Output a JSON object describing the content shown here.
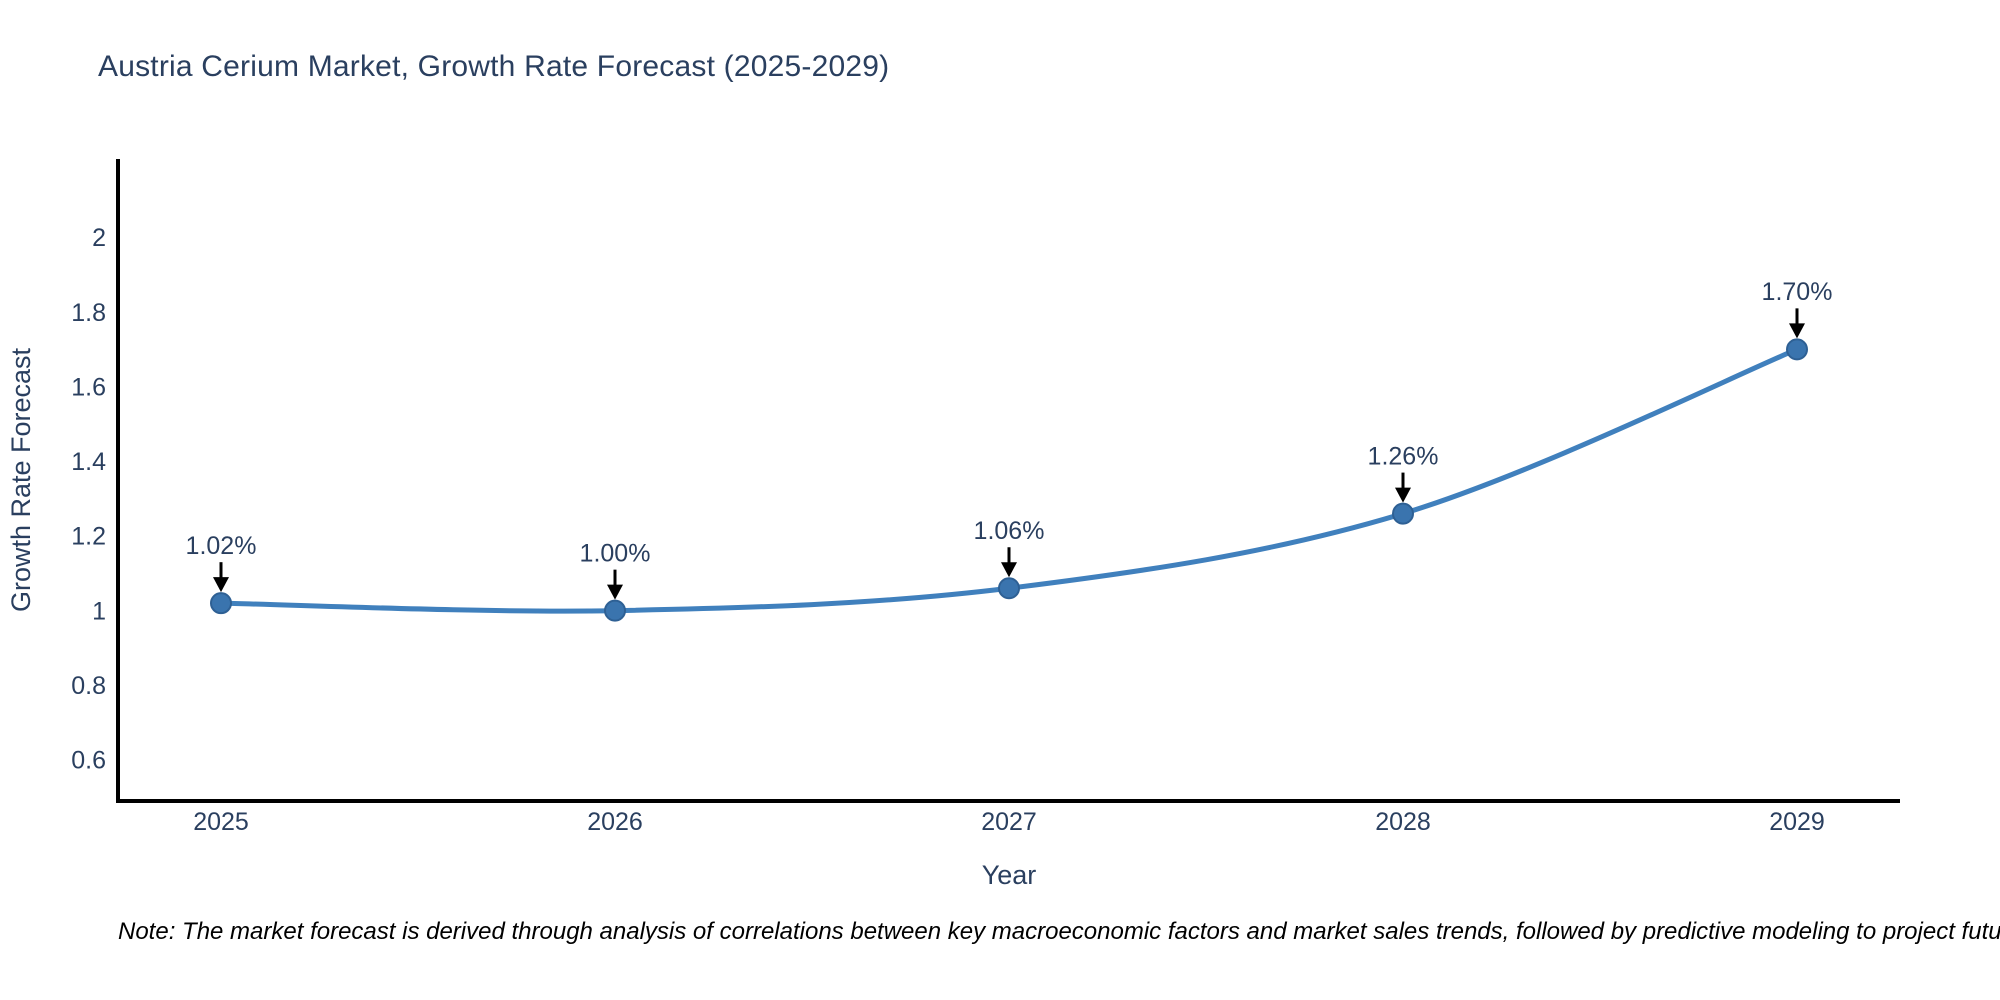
{
  "title": {
    "text": "Austria Cerium Market, Growth Rate Forecast (2025-2029)"
  },
  "note": {
    "text": "Note: The market forecast is derived through analysis of correlations between key macroeconomic factors and market sales trends, followed by predictive modeling to project future sales"
  },
  "chart_data": {
    "type": "line",
    "title": "Austria Cerium Market, Growth Rate Forecast (2025-2029)",
    "xlabel": "Year",
    "ylabel": "Growth Rate Forecast",
    "categories": [
      "2025",
      "2026",
      "2027",
      "2028",
      "2029"
    ],
    "series": [
      {
        "name": "Growth Rate Forecast",
        "values": [
          1.02,
          1.0,
          1.06,
          1.26,
          1.7
        ]
      }
    ],
    "annotations": [
      "1.02%",
      "1.00%",
      "1.06%",
      "1.26%",
      "1.70%"
    ],
    "yticks": [
      0.6,
      0.8,
      1,
      1.2,
      1.4,
      1.6,
      1.8,
      2
    ],
    "ylim": [
      0.49,
      2.21
    ],
    "grid": false,
    "legend": "none",
    "line_shape": "spline",
    "colors": {
      "line": "#4080bd",
      "marker_fill": "#3a74ae",
      "marker_edge": "#2e6094",
      "axis_line": "#000000",
      "text": "#2a3f5f",
      "annotation_text": "#2a3f5f",
      "arrow": "#000000",
      "note_text": "#000000"
    }
  }
}
